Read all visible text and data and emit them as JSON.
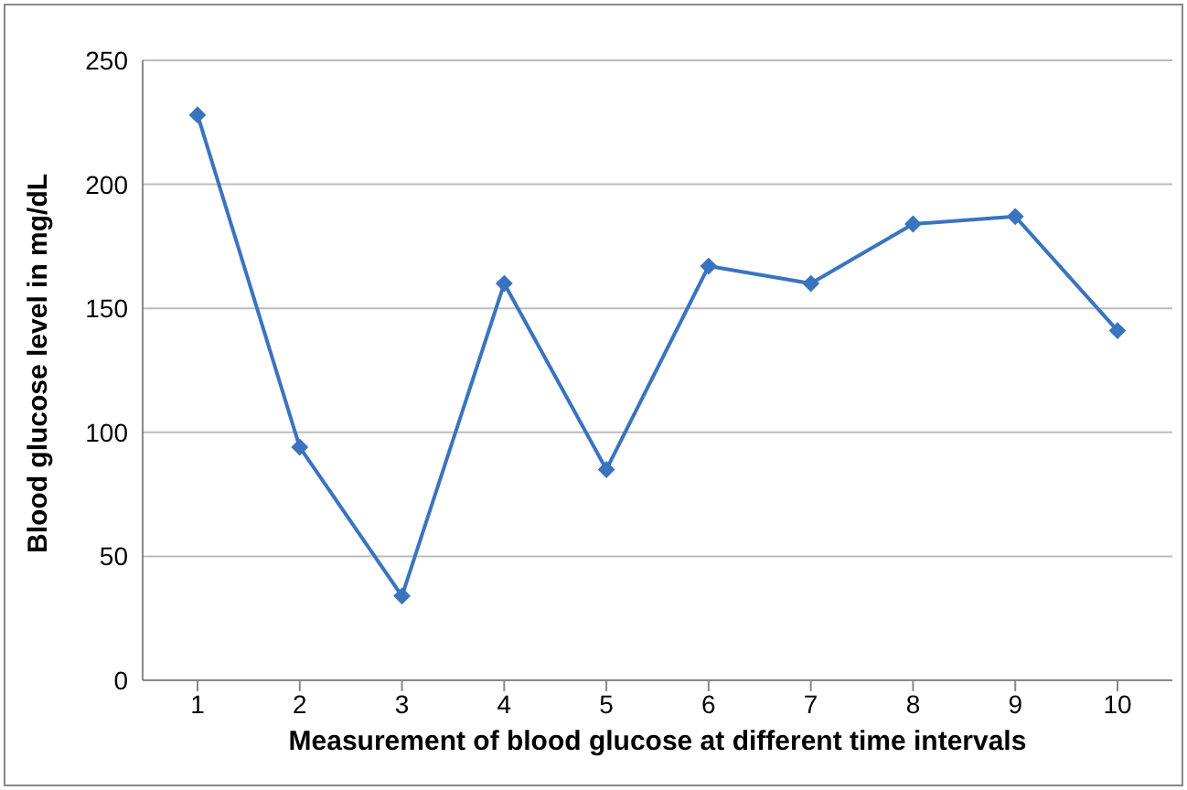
{
  "chart_data": {
    "type": "line",
    "xlabel": "Measurement of blood glucose at different time intervals",
    "ylabel": "Blood glucose level in mg/dL",
    "categories": [
      "1",
      "2",
      "3",
      "4",
      "5",
      "6",
      "7",
      "8",
      "9",
      "10"
    ],
    "series": [
      {
        "color": "#3a74bf",
        "values": [
          228,
          94,
          34,
          160,
          85,
          167,
          160,
          184,
          187,
          141
        ]
      }
    ],
    "ylim": [
      0,
      250
    ],
    "yticks": [
      0,
      50,
      100,
      150,
      200,
      250
    ],
    "grid": "y",
    "marker": "diamond",
    "line_style": "solid"
  }
}
